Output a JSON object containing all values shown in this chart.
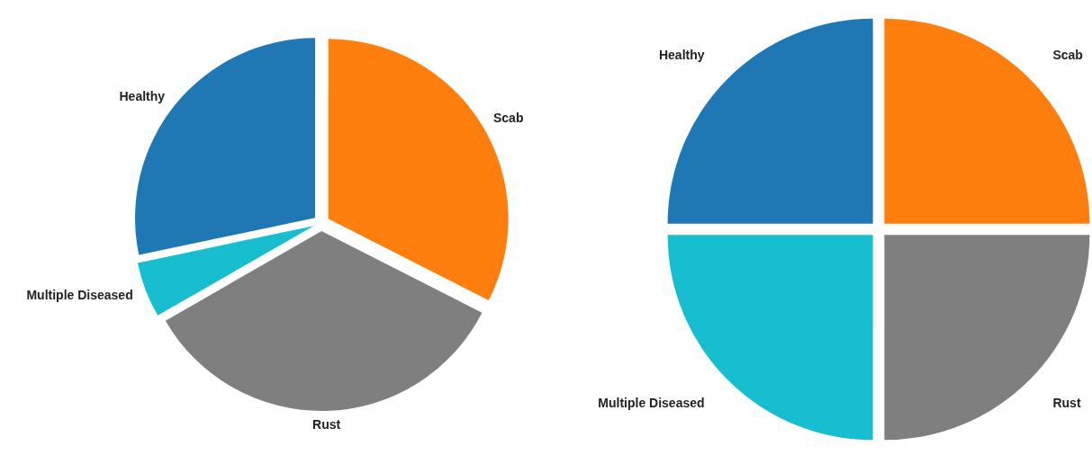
{
  "chart_data": [
    {
      "type": "pie",
      "categories": [
        "Healthy",
        "Multiple Diseased",
        "Rust",
        "Scab"
      ],
      "values": [
        28.3,
        5.0,
        34.2,
        32.5
      ],
      "colors": [
        "#1f77b4",
        "#17becf",
        "#7f7f7f",
        "#ff7f0e"
      ]
    },
    {
      "type": "pie",
      "categories": [
        "Healthy",
        "Multiple Diseased",
        "Rust",
        "Scab"
      ],
      "values": [
        25,
        25,
        25,
        25
      ],
      "colors": [
        "#1f77b4",
        "#17becf",
        "#7f7f7f",
        "#ff7f0e"
      ]
    }
  ]
}
